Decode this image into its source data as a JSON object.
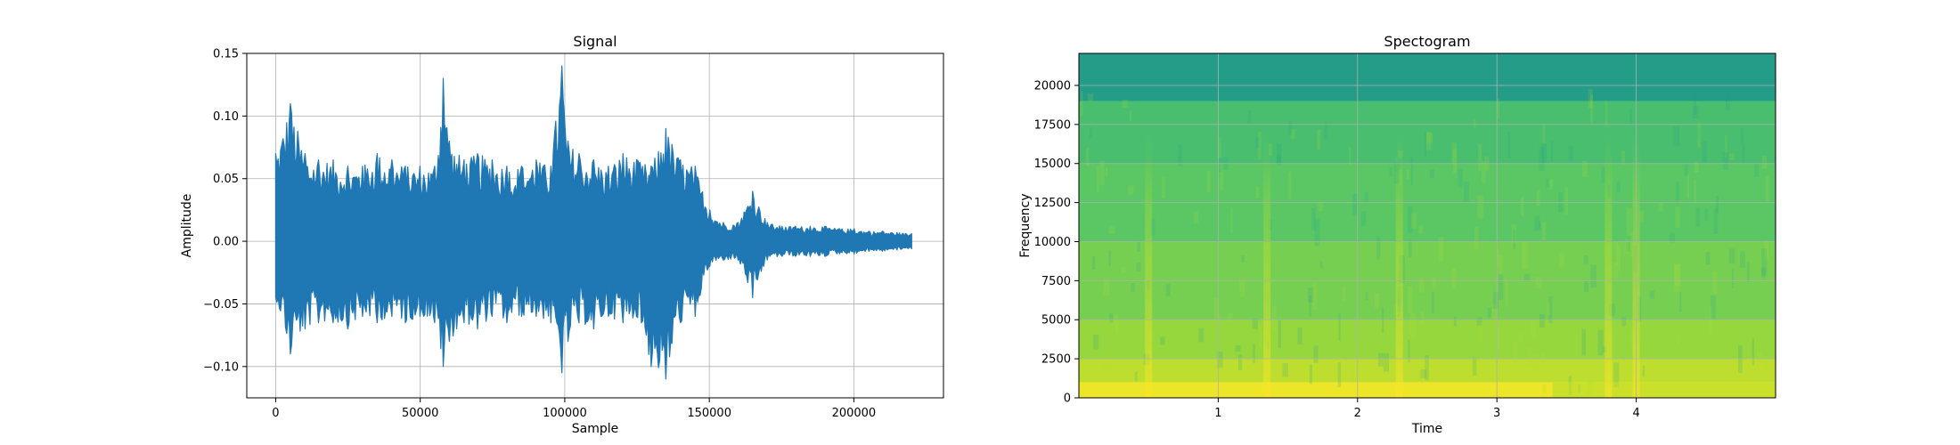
{
  "chart_data": [
    {
      "type": "line",
      "title": "Signal",
      "xlabel": "Sample",
      "ylabel": "Amplitude",
      "xlim": [
        -10000,
        231000
      ],
      "ylim": [
        -0.125,
        0.15
      ],
      "x_ticks": [
        0,
        50000,
        100000,
        150000,
        200000
      ],
      "x_tick_labels": [
        "0",
        "50000",
        "100000",
        "150000",
        "200000"
      ],
      "y_ticks": [
        -0.1,
        -0.05,
        0.0,
        0.05,
        0.1,
        0.15
      ],
      "y_tick_labels": [
        "−0.10",
        "−0.05",
        "0.00",
        "0.05",
        "0.10",
        "0.15"
      ],
      "grid": true,
      "color": "#1f77b4",
      "series": [
        {
          "x": [
            0,
            5000,
            10000,
            15000,
            20000,
            25000,
            30000,
            35000,
            40000,
            45000,
            50000,
            55000,
            58000,
            60000,
            65000,
            70000,
            75000,
            80000,
            85000,
            90000,
            95000,
            99000,
            101000,
            105000,
            110000,
            115000,
            120000,
            125000,
            130000,
            135000,
            140000,
            145000,
            150000,
            155000,
            160000,
            165000,
            170000,
            175000,
            180000,
            185000,
            190000,
            195000,
            200000,
            205000,
            210000,
            215000,
            220000
          ],
          "upper": [
            0.07,
            0.11,
            0.07,
            0.065,
            0.065,
            0.06,
            0.06,
            0.07,
            0.065,
            0.06,
            0.06,
            0.06,
            0.13,
            0.08,
            0.065,
            0.07,
            0.065,
            0.06,
            0.06,
            0.065,
            0.06,
            0.14,
            0.08,
            0.07,
            0.065,
            0.06,
            0.07,
            0.065,
            0.06,
            0.09,
            0.065,
            0.06,
            0.025,
            0.015,
            0.015,
            0.04,
            0.015,
            0.012,
            0.012,
            0.012,
            0.012,
            0.01,
            0.01,
            0.008,
            0.008,
            0.007,
            0.006
          ],
          "lower": [
            -0.045,
            -0.09,
            -0.07,
            -0.065,
            -0.065,
            -0.07,
            -0.06,
            -0.065,
            -0.06,
            -0.065,
            -0.06,
            -0.065,
            -0.1,
            -0.08,
            -0.065,
            -0.07,
            -0.06,
            -0.065,
            -0.06,
            -0.06,
            -0.065,
            -0.105,
            -0.08,
            -0.065,
            -0.07,
            -0.06,
            -0.065,
            -0.06,
            -0.1,
            -0.11,
            -0.065,
            -0.06,
            -0.02,
            -0.015,
            -0.015,
            -0.045,
            -0.015,
            -0.012,
            -0.012,
            -0.012,
            -0.012,
            -0.01,
            -0.01,
            -0.008,
            -0.008,
            -0.007,
            -0.006
          ]
        }
      ]
    },
    {
      "type": "heatmap",
      "title": "Spectogram",
      "xlabel": "Time",
      "ylabel": "Frequency",
      "xlim": [
        0,
        5
      ],
      "ylim": [
        0,
        22050
      ],
      "x_ticks": [
        1,
        2,
        3,
        4
      ],
      "x_tick_labels": [
        "1",
        "2",
        "3",
        "4"
      ],
      "y_ticks": [
        0,
        2500,
        5000,
        7500,
        10000,
        12500,
        15000,
        17500,
        20000
      ],
      "y_tick_labels": [
        "0",
        "2500",
        "5000",
        "7500",
        "10000",
        "12500",
        "15000",
        "17500",
        "20000"
      ],
      "grid": true,
      "colormap": [
        "#21918c",
        "#27ad81",
        "#5ec962",
        "#addc30",
        "#fde725"
      ],
      "frequency_bands": [
        {
          "from": 0,
          "to": 1000,
          "level": 0.95
        },
        {
          "from": 1000,
          "to": 2500,
          "level": 0.8
        },
        {
          "from": 2500,
          "to": 5000,
          "level": 0.68
        },
        {
          "from": 5000,
          "to": 10000,
          "level": 0.58
        },
        {
          "from": 10000,
          "to": 15000,
          "level": 0.48
        },
        {
          "from": 15000,
          "to": 19000,
          "level": 0.4
        },
        {
          "from": 19000,
          "to": 22050,
          "level": 0.1
        }
      ],
      "onsets": [
        0.5,
        1.35,
        2.3,
        3.8,
        4.0
      ],
      "quiet_after": 3.4
    }
  ]
}
